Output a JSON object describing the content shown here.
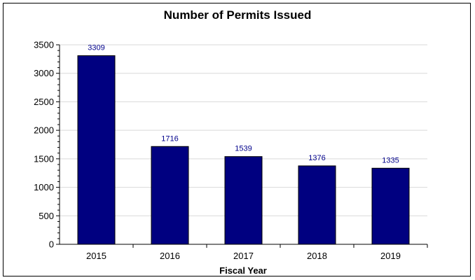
{
  "chart_data": {
    "type": "bar",
    "title": "Number of Permits Issued",
    "xlabel": "Fiscal Year",
    "ylabel": "",
    "categories": [
      "2015",
      "2016",
      "2017",
      "2018",
      "2019"
    ],
    "values": [
      3309,
      1716,
      1539,
      1376,
      1335
    ],
    "data_labels": [
      "3309",
      "1716",
      "1539",
      "1376",
      "1335"
    ],
    "yticks": [
      0,
      500,
      1000,
      1500,
      2000,
      2500,
      3000,
      3500
    ],
    "ylim": [
      0,
      3500
    ],
    "grid": true,
    "legend": "none",
    "bar_color": "#000080",
    "label_color": "#00008B"
  }
}
